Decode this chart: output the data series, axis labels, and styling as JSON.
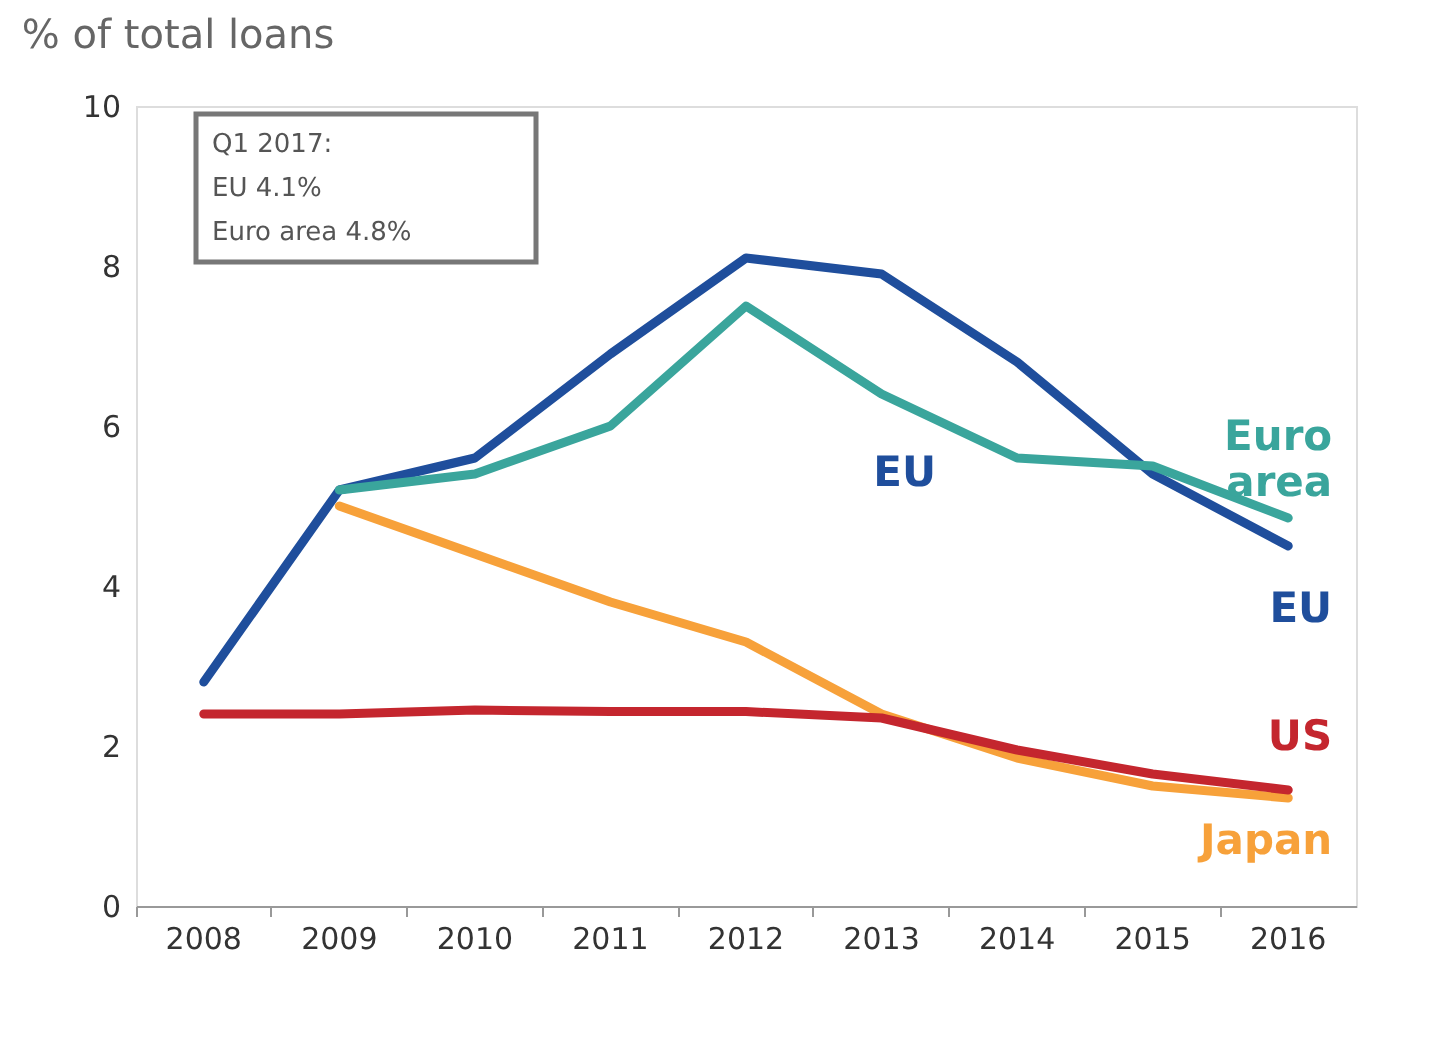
{
  "chart_data": {
    "type": "line",
    "title": "% of total loans",
    "categories": [
      "2008",
      "2009",
      "2010",
      "2011",
      "2012",
      "2013",
      "2014",
      "2015",
      "2016"
    ],
    "series": [
      {
        "name": "EU",
        "color": "#1f4e9c",
        "values": [
          2.8,
          5.2,
          5.6,
          6.9,
          8.1,
          7.9,
          6.8,
          5.4,
          4.5
        ]
      },
      {
        "name": "Euro area",
        "color": "#3aa59c",
        "values": [
          null,
          5.2,
          5.4,
          6.0,
          7.5,
          6.4,
          5.6,
          5.5,
          4.85
        ]
      },
      {
        "name": "Japan",
        "color": "#f7a13a",
        "values": [
          null,
          5.0,
          4.4,
          3.8,
          3.3,
          2.4,
          1.85,
          1.5,
          1.35
        ]
      },
      {
        "name": "US",
        "color": "#c4262e",
        "values": [
          2.4,
          2.4,
          2.45,
          2.43,
          2.43,
          2.35,
          1.95,
          1.65,
          1.45
        ]
      }
    ],
    "ylim": [
      0,
      10
    ],
    "yticks": [
      0,
      2,
      4,
      6,
      8,
      10
    ],
    "grid": false,
    "legend": false,
    "marker": "none",
    "line_style": "solid",
    "annotations": [
      "Q1 2017:",
      "EU 4.1%",
      "Euro area 4.8%",
      "EU"
    ]
  }
}
